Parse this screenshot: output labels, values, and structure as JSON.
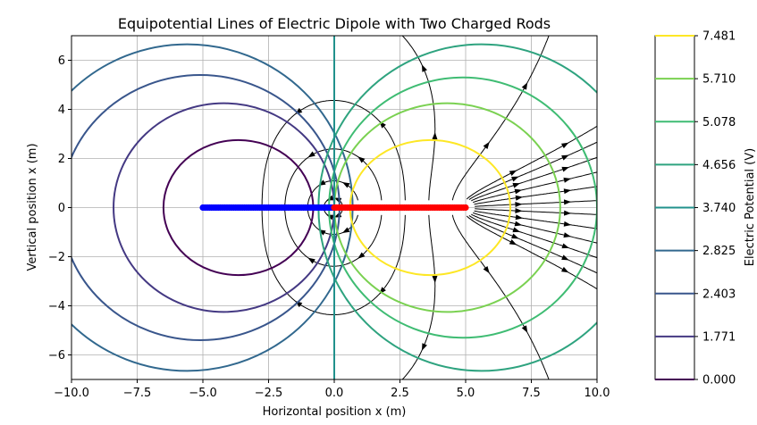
{
  "chart_data": {
    "type": "contour",
    "title": "Equipotential Lines of Electric Dipole with Two Charged Rods",
    "xlabel": "Horizontal position x (m)",
    "ylabel": "Vertical position x (m)",
    "xlim": [
      -10,
      10
    ],
    "ylim": [
      -7,
      7
    ],
    "xticks": [
      -10,
      -7.5,
      -5,
      -2.5,
      0,
      2.5,
      5,
      7.5,
      10
    ],
    "xtick_labels": [
      "−10.0",
      "−7.5",
      "−5.0",
      "−2.5",
      "0.0",
      "2.5",
      "5.0",
      "7.5",
      "10.0"
    ],
    "yticks": [
      -6,
      -4,
      -2,
      0,
      2,
      4,
      6
    ],
    "ytick_labels": [
      "−6",
      "−4",
      "−2",
      "0",
      "2",
      "4",
      "6"
    ],
    "grid": true,
    "rods": [
      {
        "charge": "negative",
        "color": "#0000ff",
        "x_start": -5,
        "x_end": 0,
        "y": 0
      },
      {
        "charge": "positive",
        "color": "#ff0000",
        "x_start": 0,
        "x_end": 5,
        "y": 0
      }
    ],
    "colorbar": {
      "label": "Electric Potential (V)",
      "levels": [
        {
          "value": 7.481,
          "label": "7.481",
          "color": "#fde725"
        },
        {
          "value": 5.71,
          "label": "5.710",
          "color": "#7ad151"
        },
        {
          "value": 5.078,
          "label": "5.078",
          "color": "#3fbc73"
        },
        {
          "value": 4.656,
          "label": "4.656",
          "color": "#2ea37f"
        },
        {
          "value": 3.74,
          "label": "3.740",
          "color": "#21918c"
        },
        {
          "value": 2.825,
          "label": "2.825",
          "color": "#31688e"
        },
        {
          "value": 2.403,
          "label": "2.403",
          "color": "#39568c"
        },
        {
          "value": 1.771,
          "label": "1.771",
          "color": "#443983"
        },
        {
          "value": 0.0,
          "label": "0.000",
          "color": "#440154"
        }
      ]
    },
    "equipotential_contours": [
      {
        "center": [
          -3.65,
          0
        ],
        "rx": 2.85,
        "ry": 2.75,
        "color": "#440154"
      },
      {
        "center": [
          -4.2,
          0
        ],
        "rx": 4.2,
        "ry": 4.25,
        "color": "#443983"
      },
      {
        "center": [
          -5.1,
          0
        ],
        "rx": 5.3,
        "ry": 5.4,
        "color": "#39568c"
      },
      {
        "center": [
          -5.6,
          0
        ],
        "rx": 6.3,
        "ry": 6.65,
        "color": "#31688e"
      },
      {
        "center": [
          3.65,
          0
        ],
        "rx": 3.05,
        "ry": 2.75,
        "color": "#fde725"
      },
      {
        "center": [
          4.3,
          0
        ],
        "rx": 4.3,
        "ry": 4.25,
        "color": "#7ad151"
      },
      {
        "center": [
          4.9,
          0
        ],
        "rx": 5.1,
        "ry": 5.3,
        "color": "#3fbc73"
      },
      {
        "center": [
          5.6,
          0
        ],
        "rx": 6.2,
        "ry": 6.65,
        "color": "#2ea37f"
      },
      {
        "vertical_line_x": 0,
        "color": "#21918c"
      }
    ]
  }
}
